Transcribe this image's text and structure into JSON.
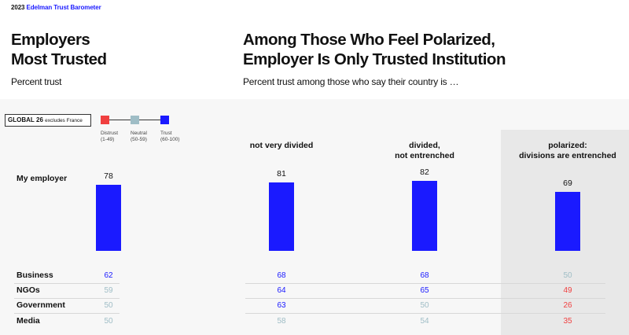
{
  "brand": {
    "year": "2023",
    "name": "Edelman Trust Barometer"
  },
  "left": {
    "title_line1": "Employers",
    "title_line2": "Most Trusted",
    "subtitle": "Percent trust"
  },
  "main": {
    "title_line1": "Among Those Who Feel Polarized,",
    "title_line2": "Employer Is Only Trusted Institution",
    "subtitle": "Percent trust among those who say their country is …"
  },
  "global_box": {
    "label": "GLOBAL",
    "count": "26",
    "note": "excludes France"
  },
  "legend": [
    {
      "name": "Distrust",
      "range": "(1-49)",
      "color": "#f04040"
    },
    {
      "name": "Neutral",
      "range": "(50-59)",
      "color": "#9fbdc6"
    },
    {
      "name": "Trust",
      "range": "(60-100)",
      "color": "#1a1aff"
    }
  ],
  "chart_data": {
    "type": "bar",
    "categories": [
      "Global",
      "not very divided",
      "divided, not entrenched",
      "polarized: divisions are entrenched"
    ],
    "column_headers": [
      {
        "line1": "",
        "line2": ""
      },
      {
        "line1": "not very divided",
        "line2": ""
      },
      {
        "line1": "divided,",
        "line2": "not entrenched"
      },
      {
        "line1": "polarized:",
        "line2": "divisions are entrenched"
      }
    ],
    "bar_series": {
      "name": "My employer",
      "values": [
        78,
        81,
        82,
        69
      ]
    },
    "table_rows": [
      {
        "name": "Business",
        "values": [
          62,
          68,
          68,
          50
        ]
      },
      {
        "name": "NGOs",
        "values": [
          59,
          64,
          65,
          49
        ]
      },
      {
        "name": "Government",
        "values": [
          50,
          63,
          50,
          26
        ]
      },
      {
        "name": "Media",
        "values": [
          50,
          58,
          54,
          35
        ]
      }
    ],
    "ylim": [
      0,
      100
    ],
    "colors": {
      "distrust": "#f04040",
      "neutral": "#9fbdc6",
      "trust": "#1a1aff"
    }
  }
}
